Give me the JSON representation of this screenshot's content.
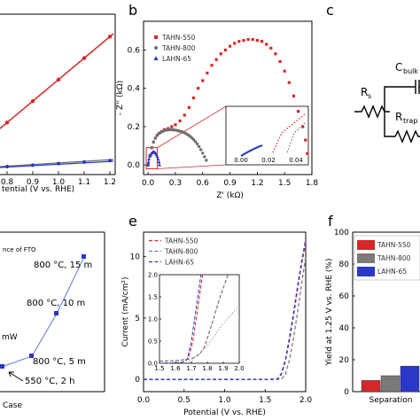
{
  "panels": {
    "a": {
      "xlabel": "tential (V vs. RHE)",
      "xticks": [
        "0.8",
        "0.9",
        "1.0",
        "1.1",
        "1.2"
      ]
    },
    "b": {
      "letter": "b"
    },
    "c": {
      "letter": "c",
      "labels": {
        "rs": "R",
        "rs_sub": "s",
        "c": "C",
        "c_sub": "bulk",
        "rt": "R",
        "rt_sub": "trap"
      }
    },
    "d": {
      "note": "nce of FTO",
      "mw": "mW",
      "xlabel": "Case",
      "points": [
        "800 °C, 15 m",
        "800 °C, 10 m",
        "800 °C, 5 m",
        "550 °C, 2 h"
      ]
    },
    "e": {
      "letter": "e"
    },
    "f": {
      "letter": "f"
    }
  },
  "colors": {
    "red": "#d62728",
    "gray": "#6e6e6e",
    "blue": "#2a37c8"
  },
  "chart_data": [
    {
      "id": "b",
      "type": "scatter",
      "xlabel": "Z' (kΩ)",
      "ylabel": "- Z'' (kΩ)",
      "xlim": [
        -0.05,
        1.8
      ],
      "ylim": [
        -0.05,
        0.75
      ],
      "xticks": [
        "0.0",
        "0.3",
        "0.6",
        "0.9",
        "1.2",
        "1.5",
        "1.8"
      ],
      "xtick_values": [
        0,
        0.3,
        0.6,
        0.9,
        1.2,
        1.5,
        1.8
      ],
      "yticks": [
        "0.0",
        "0.2",
        "0.4",
        "0.6"
      ],
      "ytick_values": [
        0,
        0.2,
        0.4,
        0.6
      ],
      "legend": [
        "TAHN-550",
        "TAHN-800",
        "LAHN-65"
      ],
      "legend_position": "top-left",
      "series": [
        {
          "name": "TAHN-550",
          "color": "#d62728",
          "x": [
            0.0,
            0.02,
            0.04,
            0.06,
            0.08,
            0.1,
            0.12,
            0.15,
            0.18,
            0.22,
            0.26,
            0.3,
            0.35,
            0.4,
            0.45,
            0.5,
            0.55,
            0.6,
            0.65,
            0.7,
            0.75,
            0.8,
            0.85,
            0.9,
            0.95,
            1.0,
            1.05,
            1.1,
            1.15,
            1.2,
            1.25,
            1.3,
            1.35,
            1.4,
            1.45,
            1.5,
            1.55,
            1.6,
            1.65,
            1.7,
            1.73,
            1.75
          ],
          "y": [
            0.0,
            0.05,
            0.09,
            0.12,
            0.14,
            0.155,
            0.165,
            0.175,
            0.185,
            0.19,
            0.2,
            0.21,
            0.23,
            0.26,
            0.3,
            0.35,
            0.4,
            0.44,
            0.48,
            0.52,
            0.55,
            0.58,
            0.6,
            0.62,
            0.635,
            0.645,
            0.65,
            0.655,
            0.655,
            0.65,
            0.645,
            0.63,
            0.61,
            0.58,
            0.54,
            0.49,
            0.43,
            0.36,
            0.28,
            0.2,
            0.13,
            0.06
          ]
        },
        {
          "name": "TAHN-800",
          "color": "#6e6e6e",
          "x": [
            0.0,
            0.02,
            0.04,
            0.06,
            0.08,
            0.1,
            0.12,
            0.14,
            0.16,
            0.18,
            0.2,
            0.22,
            0.24,
            0.26,
            0.28,
            0.3,
            0.32,
            0.34,
            0.36,
            0.38,
            0.4,
            0.42,
            0.44,
            0.46,
            0.48,
            0.5,
            0.52,
            0.54,
            0.56,
            0.58,
            0.6,
            0.62,
            0.64
          ],
          "y": [
            0.0,
            0.05,
            0.09,
            0.12,
            0.14,
            0.155,
            0.165,
            0.17,
            0.175,
            0.18,
            0.182,
            0.183,
            0.184,
            0.184,
            0.183,
            0.182,
            0.18,
            0.178,
            0.175,
            0.172,
            0.168,
            0.163,
            0.157,
            0.15,
            0.142,
            0.133,
            0.122,
            0.11,
            0.096,
            0.08,
            0.062,
            0.043,
            0.025
          ]
        },
        {
          "name": "LAHN-65",
          "color": "#2a37c8",
          "x": [
            0.0,
            0.005,
            0.01,
            0.02,
            0.03,
            0.04,
            0.05,
            0.06,
            0.07,
            0.08,
            0.09,
            0.1,
            0.11,
            0.12,
            0.125
          ],
          "y": [
            0.0,
            0.015,
            0.03,
            0.045,
            0.055,
            0.062,
            0.066,
            0.068,
            0.066,
            0.062,
            0.055,
            0.045,
            0.03,
            0.015,
            0.0
          ]
        }
      ]
    },
    {
      "id": "e",
      "type": "line",
      "xlabel": "Potential (V vs. RHE)",
      "ylabel": "Current (mA/cm²)",
      "xlim": [
        0.0,
        2.0
      ],
      "ylim": [
        -1,
        12
      ],
      "xticks": [
        "0.0",
        "0.5",
        "1.0",
        "1.5",
        "2.0"
      ],
      "xtick_values": [
        0,
        0.5,
        1.0,
        1.5,
        2.0
      ],
      "yticks": [
        "0",
        "5",
        "10"
      ],
      "ytick_values": [
        0,
        5,
        10
      ],
      "legend": [
        "TAHN-550",
        "TAHN-800",
        "LAHN-65"
      ],
      "legend_position": "top-left",
      "series": [
        {
          "name": "TAHN-550",
          "color": "#d62728",
          "x": [
            0,
            0.5,
            1.0,
            1.5,
            1.65,
            1.7,
            1.75,
            1.8,
            1.85,
            1.9,
            1.95,
            2.0
          ],
          "y": [
            0,
            0,
            0,
            0,
            0.02,
            0.4,
            1.5,
            3.2,
            5.2,
            7.4,
            9.4,
            11.2
          ]
        },
        {
          "name": "TAHN-800",
          "color": "#7a7a7a",
          "x": [
            0,
            0.5,
            1.0,
            1.5,
            1.7,
            1.75,
            1.8,
            1.85,
            1.9,
            1.95,
            2.0
          ],
          "y": [
            0,
            0,
            0,
            0,
            0.02,
            0.4,
            1.6,
            3.4,
            5.5,
            7.8,
            10.0
          ]
        },
        {
          "name": "LAHN-65",
          "color": "#2a37c8",
          "x": [
            0,
            0.5,
            1.0,
            1.5,
            1.65,
            1.7,
            1.75,
            1.8,
            1.85,
            1.9,
            1.95,
            2.0
          ],
          "y": [
            0,
            0,
            0,
            0,
            0.02,
            0.45,
            1.6,
            3.4,
            5.4,
            7.6,
            9.6,
            11.4
          ]
        }
      ],
      "inset": {
        "xlim": [
          1.5,
          2.0
        ],
        "ylim": [
          0,
          2.0
        ],
        "xticks": [
          "1.5",
          "1.6",
          "1.7",
          "1.8",
          "1.9",
          "2.0"
        ],
        "xtick_values": [
          1.5,
          1.6,
          1.7,
          1.8,
          1.9,
          2.0
        ],
        "yticks": [
          "0.0",
          "0.5",
          "1.0",
          "1.5",
          "2.0"
        ],
        "ytick_values": [
          0,
          0.5,
          1.0,
          1.5,
          2.0
        ]
      }
    },
    {
      "id": "f",
      "type": "bar",
      "ylabel": "Yield at 1.25 V vs. RHE (%)",
      "ylim": [
        0,
        100
      ],
      "yticks": [
        "0",
        "20",
        "40",
        "60",
        "80",
        "100"
      ],
      "ytick_values": [
        0,
        20,
        40,
        60,
        80,
        100
      ],
      "categories": [
        "Separation"
      ],
      "legend": [
        "TAHN-550",
        "TAHN-800",
        "LAHN-65"
      ],
      "legend_position": "top",
      "series": [
        {
          "name": "TAHN-550",
          "color": "#d62728",
          "values": [
            7
          ]
        },
        {
          "name": "TAHN-800",
          "color": "#7a7a7a",
          "values": [
            10
          ]
        },
        {
          "name": "LAHN-65",
          "color": "#2a37c8",
          "values": [
            16
          ]
        }
      ]
    }
  ]
}
